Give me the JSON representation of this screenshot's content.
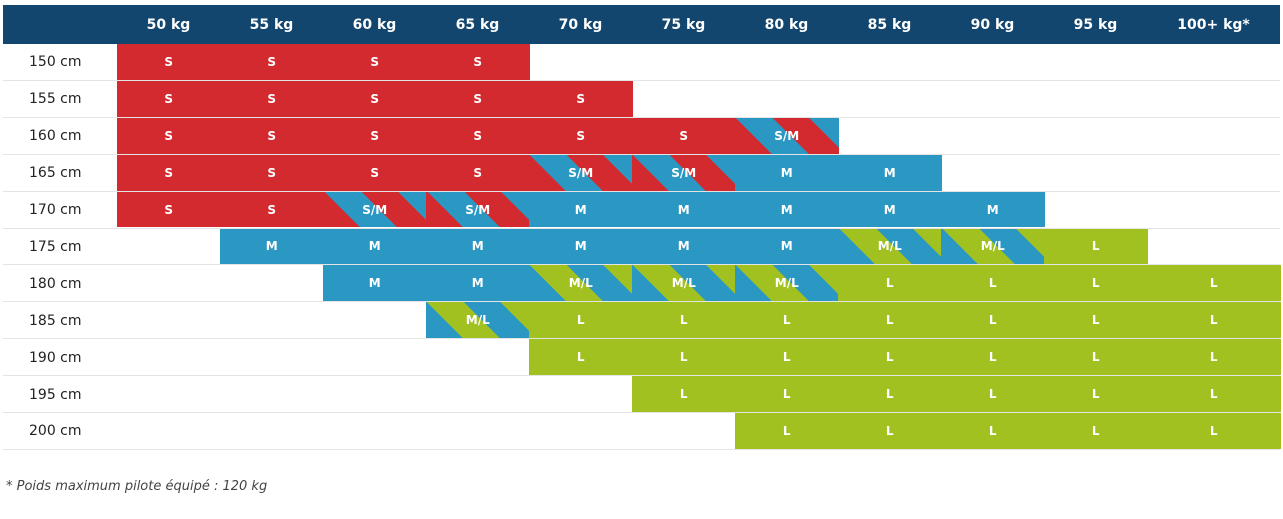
{
  "colors": {
    "header_bg": "#13466f",
    "S": "#d32a2f",
    "M": "#2b98c4",
    "L": "#a1c121",
    "row_border": "#e4e4e4"
  },
  "chart_data": {
    "type": "table",
    "columns": [
      "50 kg",
      "55 kg",
      "60 kg",
      "65 kg",
      "70 kg",
      "75 kg",
      "80 kg",
      "85 kg",
      "90 kg",
      "95 kg",
      "100+ kg*"
    ],
    "rows": [
      {
        "label": "150 cm",
        "cells": [
          "S",
          "S",
          "S",
          "S",
          "",
          "",
          "",
          "",
          "",
          "",
          ""
        ]
      },
      {
        "label": "155 cm",
        "cells": [
          "S",
          "S",
          "S",
          "S",
          "S",
          "",
          "",
          "",
          "",
          "",
          ""
        ]
      },
      {
        "label": "160 cm",
        "cells": [
          "S",
          "S",
          "S",
          "S",
          "S",
          "S",
          "S/M",
          "",
          "",
          "",
          ""
        ]
      },
      {
        "label": "165 cm",
        "cells": [
          "S",
          "S",
          "S",
          "S",
          "S/M",
          "S/M",
          "M",
          "M",
          "",
          "",
          ""
        ]
      },
      {
        "label": "170 cm",
        "cells": [
          "S",
          "S",
          "S/M",
          "S/M",
          "M",
          "M",
          "M",
          "M",
          "M",
          "",
          ""
        ]
      },
      {
        "label": "175 cm",
        "cells": [
          "",
          "M",
          "M",
          "M",
          "M",
          "M",
          "M",
          "M/L",
          "M/L",
          "L",
          ""
        ]
      },
      {
        "label": "180 cm",
        "cells": [
          "",
          "",
          "M",
          "M",
          "M/L",
          "M/L",
          "M/L",
          "L",
          "L",
          "L",
          "L"
        ]
      },
      {
        "label": "185 cm",
        "cells": [
          "",
          "",
          "",
          "M/L",
          "L",
          "L",
          "L",
          "L",
          "L",
          "L",
          "L"
        ]
      },
      {
        "label": "190 cm",
        "cells": [
          "",
          "",
          "",
          "",
          "L",
          "L",
          "L",
          "L",
          "L",
          "L",
          "L"
        ]
      },
      {
        "label": "195 cm",
        "cells": [
          "",
          "",
          "",
          "",
          "",
          "L",
          "L",
          "L",
          "L",
          "L",
          "L"
        ]
      },
      {
        "label": "200 cm",
        "cells": [
          "",
          "",
          "",
          "",
          "",
          "",
          "L",
          "L",
          "L",
          "L",
          "L"
        ]
      }
    ]
  },
  "footnote": "* Poids maximum pilote équipé : 120 kg"
}
